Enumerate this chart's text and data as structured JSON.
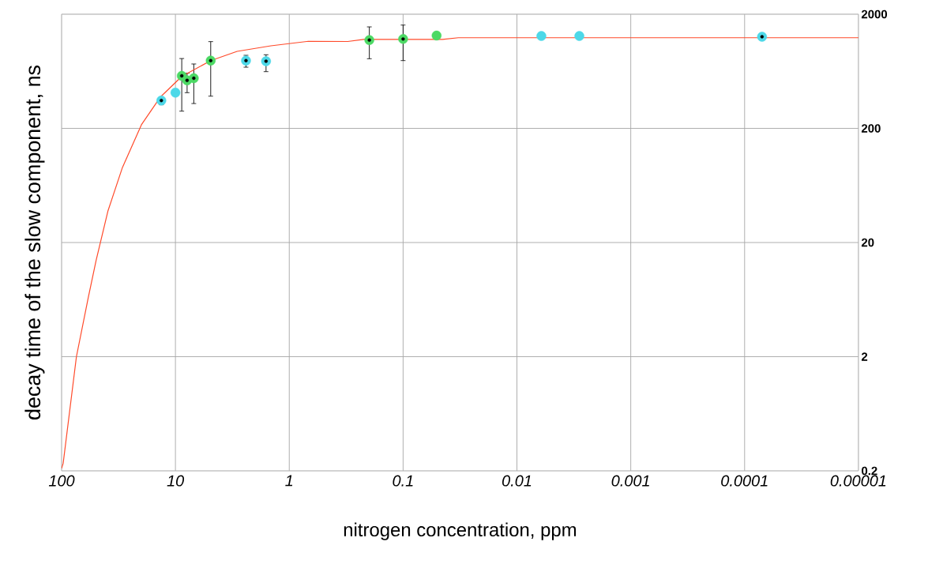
{
  "chart_data": {
    "type": "scatter",
    "xlabel": "nitrogen concentration, ppm",
    "ylabel": "decay time of the slow component, ns",
    "log": "xy",
    "grid": true,
    "xlim": [
      100,
      1e-05
    ],
    "ylim": [
      0.2,
      2000
    ],
    "xticks": [
      100,
      10,
      1,
      0.1,
      0.01,
      0.001,
      0.0001,
      {
        "value": 1e-05,
        "label": "0.00001"
      }
    ],
    "yticks": [
      0.2,
      2,
      20,
      200,
      2000
    ],
    "series": [
      {
        "type": "scatter",
        "marker": "circle",
        "color": "#4cd964",
        "x": [
          8.8,
          7.9,
          6.9,
          4.9,
          0.198,
          0.1,
          0.0508
        ],
        "values": [
          577,
          527,
          550,
          785,
          1188,
          1213,
          1300
        ],
        "errors": [
          [
            283,
            818
          ],
          [
            411,
            608
          ],
          [
            330,
            733
          ],
          [
            383,
            1151
          ],
          [
            815,
            1549
          ],
          [
            785,
            1607
          ],
          null
        ]
      },
      {
        "type": "scatter",
        "marker": "circle",
        "color": "#4dd8e8",
        "x": [
          13.3,
          10,
          2.4,
          1.6,
          0.0061,
          0.00283,
          7.03e-05
        ],
        "values": [
          351,
          411,
          785,
          776,
          1288,
          1288,
          1270
        ],
        "errors": [
          [
            322,
            368
          ],
          null,
          [
            687,
            873
          ],
          [
            628,
            883
          ],
          null,
          null,
          [
            1203,
            1325
          ]
        ]
      },
      {
        "type": "line",
        "marker": "none",
        "color": "#ff4a2a",
        "x": [
          100,
          96.9,
          74.1,
          58.3,
          49.8,
          39.1,
          29.2,
          19.9,
          13.6,
          8.8,
          4.9,
          2.87,
          1.45,
          0.68,
          0.306,
          0.222,
          0.045,
          0.0327,
          1e-05
        ],
        "values": [
          0.21,
          0.232,
          2.0,
          6.6,
          13.9,
          38,
          91,
          215,
          375,
          570,
          785,
          946,
          1057,
          1158,
          1154,
          1203,
          1203,
          1245,
          1245
        ]
      }
    ]
  }
}
